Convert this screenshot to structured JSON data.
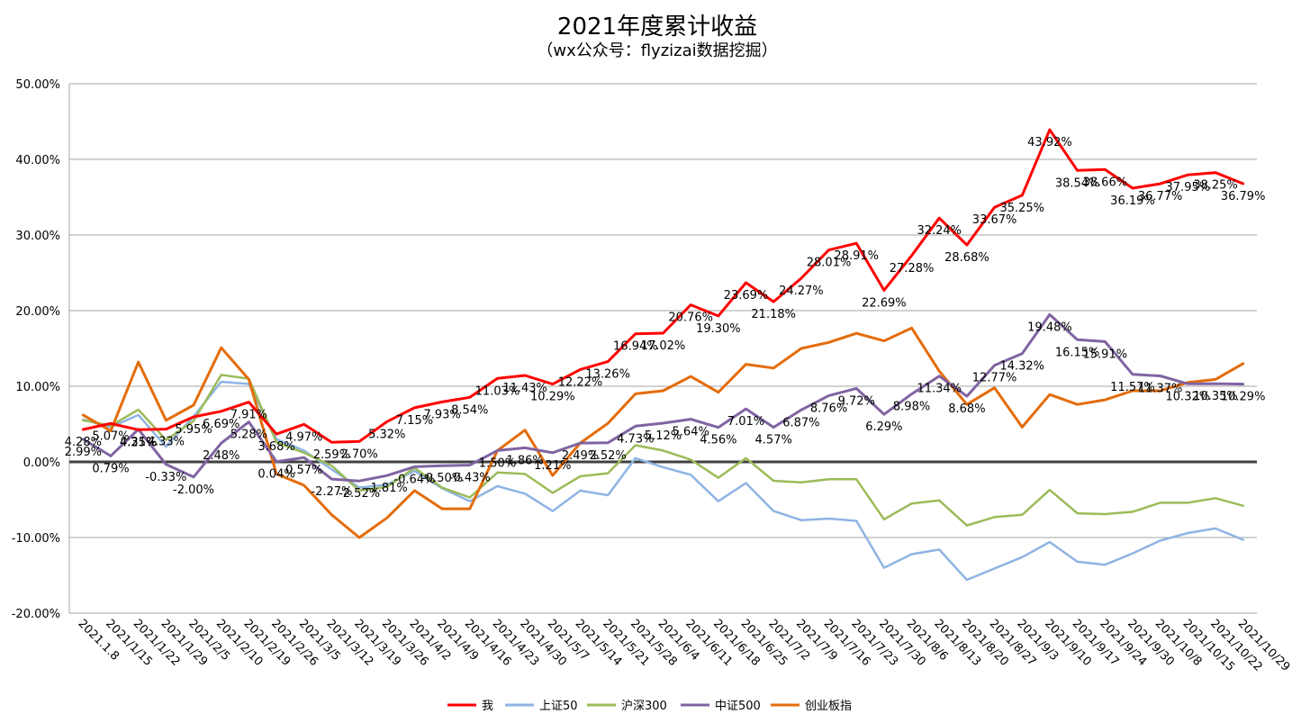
{
  "chart_data": {
    "type": "line",
    "title": "2021年度累计收益",
    "subtitle": "（wx公众号：flyzizai数据挖掘）",
    "ylim": [
      -20,
      50
    ],
    "y_ticks": [
      "50.00%",
      "40.00%",
      "30.00%",
      "20.00%",
      "10.00%",
      "0.00%",
      "-10.00%",
      "-20.00%"
    ],
    "grid": true,
    "legend_position": "bottom",
    "categories": [
      "2021.1.8",
      "2021/1/15",
      "2021/1/22",
      "2021/1/29",
      "2021/2/5",
      "2021/2/10",
      "2021/2/19",
      "2021/2/26",
      "2021/3/5",
      "2021/3/12",
      "2021/3/19",
      "2021/3/26",
      "2021/4/2",
      "2021/4/9",
      "2021/4/16",
      "2021/4/23",
      "2021/4/30",
      "2021/5/7",
      "2021/5/14",
      "2021/5/21",
      "2021/5/28",
      "2021/6/4",
      "2021/6/11",
      "2021/6/18",
      "2021/6/25",
      "2021/7/2",
      "2021/7/9",
      "2021/7/16",
      "2021/7/23",
      "2021/7/30",
      "2021/8/6",
      "2021/8/13",
      "2021/8/20",
      "2021/8/27",
      "2021/9/3",
      "2021/9/10",
      "2021/9/17",
      "2021/9/24",
      "2021/9/30",
      "2021/10/8",
      "2021/10/15",
      "2021/10/22",
      "2021/10/29"
    ],
    "series": [
      {
        "name": "我",
        "color": "#ff0000",
        "width": 3,
        "values": [
          4.28,
          5.07,
          4.25,
          4.33,
          5.95,
          6.69,
          7.91,
          3.68,
          4.97,
          2.59,
          2.7,
          5.32,
          7.15,
          7.93,
          8.54,
          11.03,
          11.43,
          10.29,
          12.22,
          13.26,
          16.94,
          17.02,
          20.76,
          19.3,
          23.69,
          21.18,
          24.27,
          28.01,
          28.91,
          22.69,
          27.28,
          32.24,
          28.68,
          33.67,
          35.25,
          43.92,
          38.54,
          38.66,
          36.19,
          36.77,
          37.95,
          38.25,
          36.79
        ],
        "labels": [
          "4.28%",
          "5.07%",
          "4.25%",
          "4.33%",
          "5.95%",
          "6.69%",
          "7.91%",
          "3.68%",
          "4.97%",
          "2.59%",
          "2.70%",
          "5.32%",
          "7.15%",
          "7.93%",
          "8.54%",
          "11.03%",
          "11.43%",
          "10.29%",
          "12.22%",
          "13.26%",
          "16.94%",
          "17.02%",
          "20.76%",
          "19.30%",
          "23.69%",
          "21.18%",
          "24.27%",
          "28.01%",
          "28.91%",
          "22.69%",
          "27.28%",
          "32.24%",
          "28.68%",
          "33.67%",
          "35.25%",
          "43.92%",
          "38.54%",
          "38.66%",
          "36.19%",
          "36.77%",
          "37.95%",
          "38.25%",
          "36.79%"
        ]
      },
      {
        "name": "上证50",
        "color": "#8eb4e3",
        "width": 2.5,
        "values": [
          5.6,
          4.6,
          6.2,
          2.0,
          6.0,
          10.6,
          10.3,
          3.0,
          1.5,
          -1.0,
          -3.4,
          -3.0,
          -1.2,
          -3.5,
          -5.2,
          -3.2,
          -4.2,
          -6.5,
          -3.8,
          -4.4,
          0.5,
          -0.7,
          -1.7,
          -5.2,
          -2.8,
          -6.5,
          -7.7,
          -7.5,
          -7.8,
          -14.0,
          -12.2,
          -11.6,
          -15.6,
          -14.1,
          -12.6,
          -10.6,
          -13.2,
          -13.6,
          -12.1,
          -10.4,
          -9.4,
          -8.8,
          -10.3
        ]
      },
      {
        "name": "沪深300",
        "color": "#9bbb59",
        "width": 2.5,
        "values": [
          5.5,
          4.8,
          6.9,
          2.9,
          5.4,
          11.5,
          11.0,
          2.6,
          1.2,
          -0.5,
          -3.8,
          -3.3,
          -0.8,
          -3.4,
          -4.7,
          -1.4,
          -1.6,
          -4.1,
          -1.9,
          -1.5,
          2.2,
          1.5,
          0.3,
          -2.1,
          0.5,
          -2.5,
          -2.7,
          -2.3,
          -2.3,
          -7.6,
          -5.5,
          -5.1,
          -8.4,
          -7.3,
          -7.0,
          -3.7,
          -6.8,
          -6.9,
          -6.6,
          -5.4,
          -5.4,
          -4.8,
          -5.8
        ]
      },
      {
        "name": "中证500",
        "color": "#8064a2",
        "width": 3,
        "values": [
          2.99,
          0.79,
          4.31,
          -0.33,
          -2.0,
          2.48,
          5.28,
          0.04,
          0.57,
          -2.27,
          -2.52,
          -1.81,
          -0.64,
          -0.5,
          -0.43,
          1.5,
          1.86,
          1.21,
          2.49,
          2.52,
          4.73,
          5.12,
          5.64,
          4.56,
          7.01,
          4.57,
          6.87,
          8.76,
          9.72,
          6.29,
          8.98,
          11.34,
          8.68,
          12.77,
          14.32,
          19.48,
          16.15,
          15.91,
          11.57,
          11.37,
          10.32,
          10.35,
          10.29
        ],
        "labels": [
          "2.99%",
          "0.79%",
          "4.31%",
          "-0.33%",
          "-2.00%",
          "2.48%",
          "5.28%",
          "0.04%",
          "0.57%",
          "-2.27%",
          "-2.52%",
          "-1.81%",
          "-0.64%",
          "-0.50%",
          "-0.43%",
          "1.50%",
          "1.86%",
          "1.21%",
          "2.49%",
          "2.52%",
          "4.73%",
          "5.12%",
          "5.64%",
          "4.56%",
          "7.01%",
          "4.57%",
          "6.87%",
          "8.76%",
          "9.72%",
          "6.29%",
          "8.98%",
          "11.34%",
          "8.68%",
          "12.77%",
          "14.32%",
          "19.48%",
          "16.15%",
          "15.91%",
          "11.57%",
          "11.37%",
          "10.32%",
          "10.35%",
          "10.29%"
        ]
      },
      {
        "name": "创业板指",
        "color": "#e46c0a",
        "width": 3,
        "values": [
          6.2,
          4.1,
          13.2,
          5.5,
          7.5,
          15.1,
          10.9,
          -1.6,
          -3.1,
          -7.0,
          -10.0,
          -7.4,
          -3.8,
          -6.2,
          -6.2,
          1.5,
          4.2,
          -1.8,
          2.5,
          5.1,
          9.0,
          9.4,
          11.3,
          9.2,
          12.9,
          12.4,
          15.0,
          15.8,
          17.0,
          16.0,
          17.7,
          12.0,
          7.6,
          9.8,
          4.6,
          8.9,
          7.6,
          8.2,
          9.4,
          9.4,
          10.5,
          10.9,
          13.0
        ]
      }
    ]
  }
}
